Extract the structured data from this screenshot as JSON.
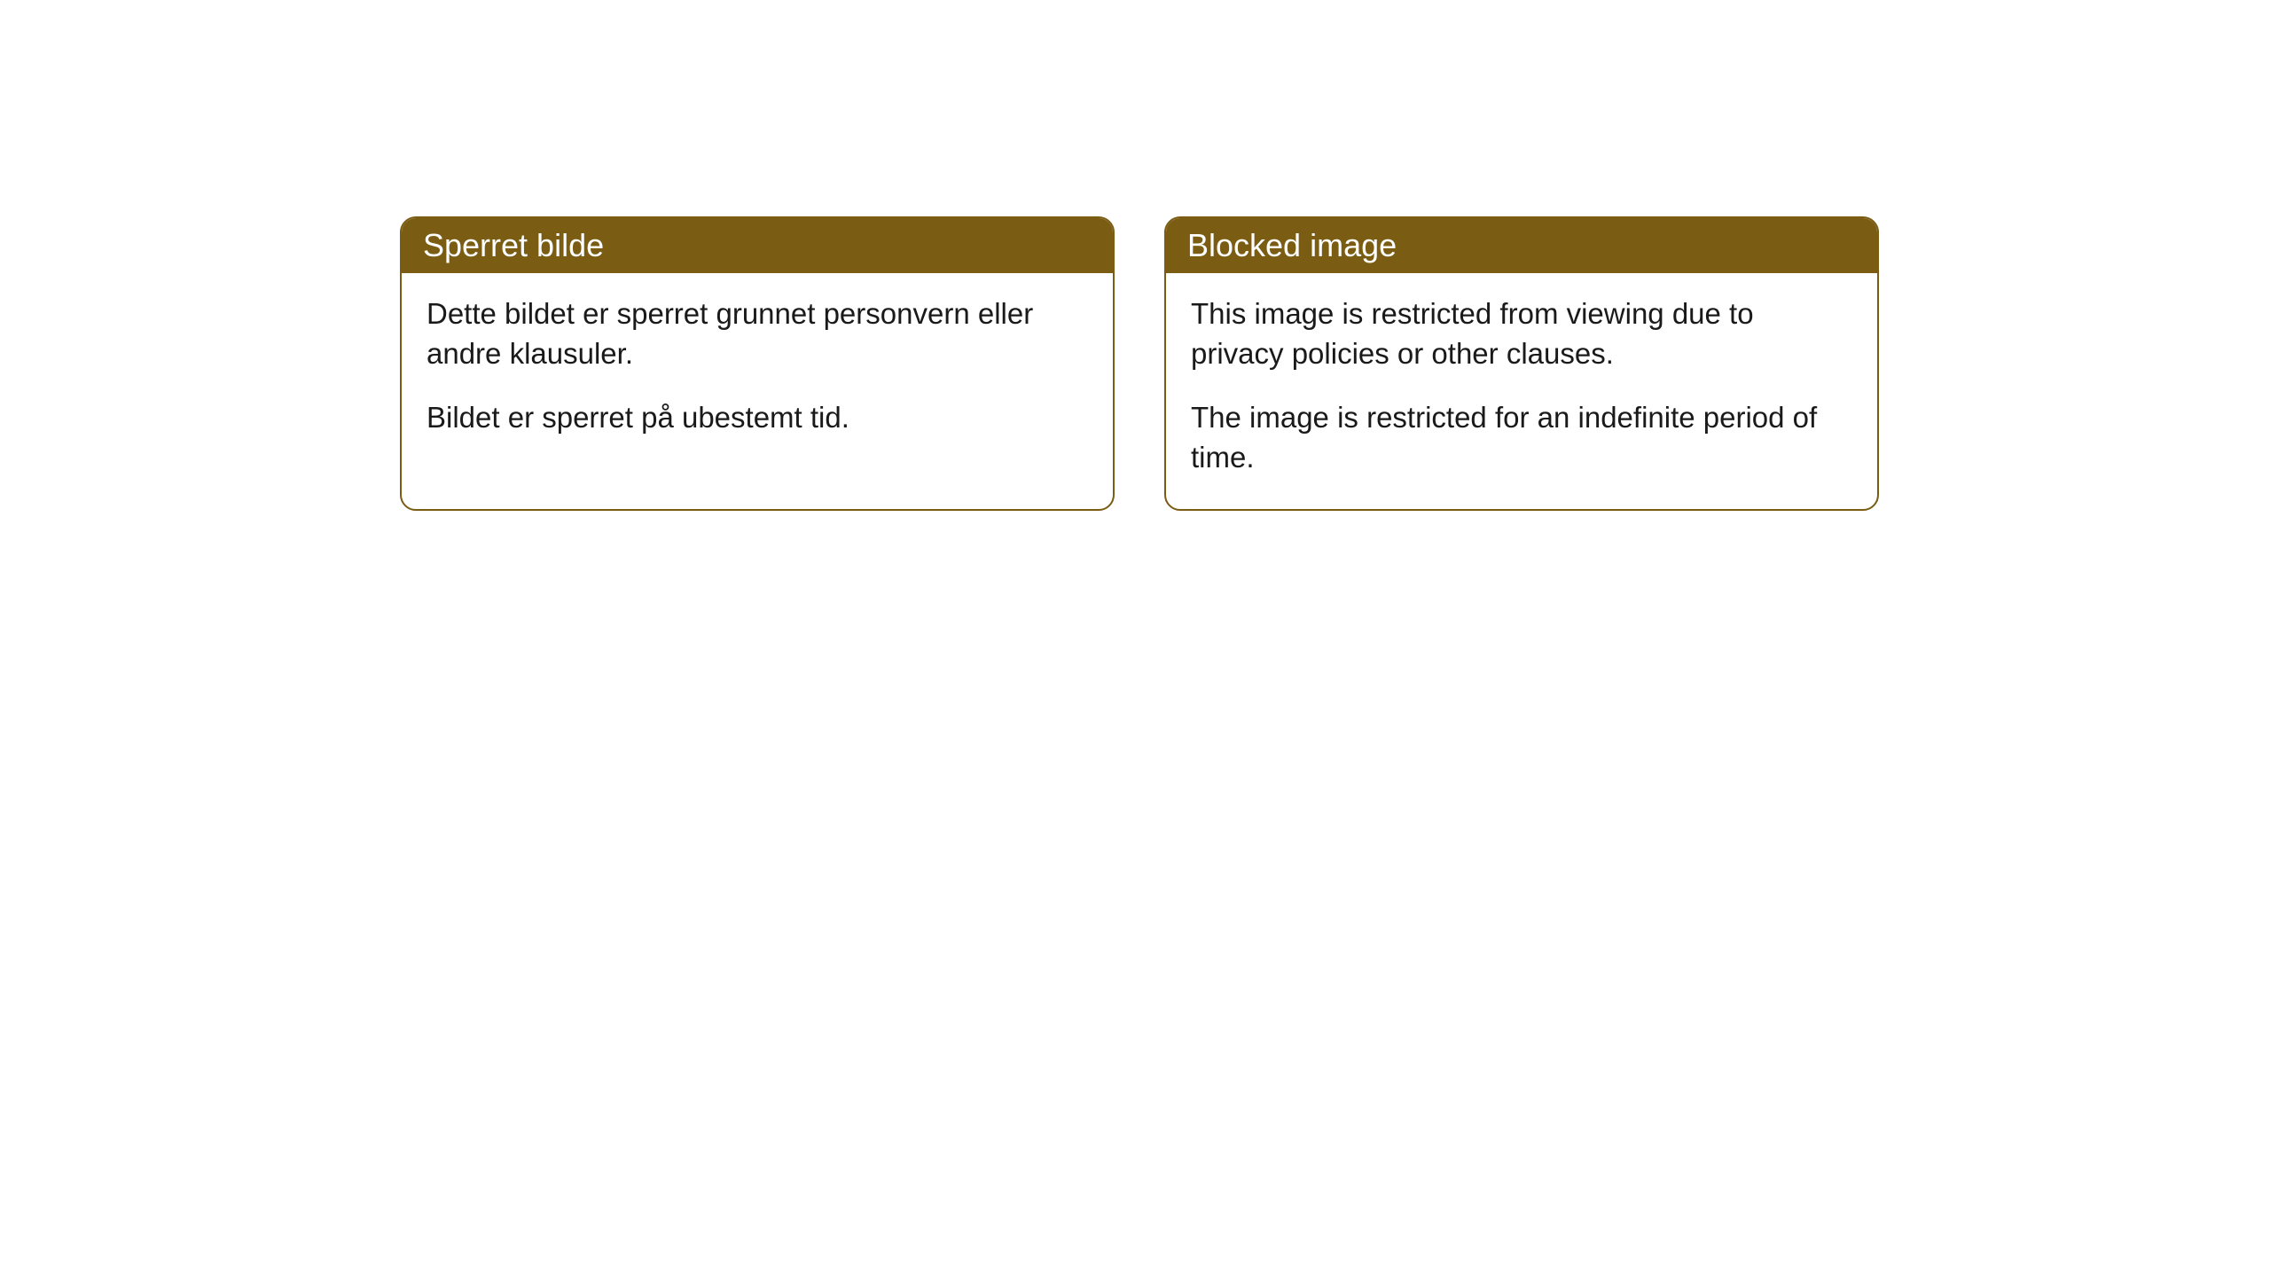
{
  "cards": [
    {
      "title": "Sperret bilde",
      "paragraph1": "Dette bildet er sperret grunnet personvern eller andre klausuler.",
      "paragraph2": "Bildet er sperret på ubestemt tid."
    },
    {
      "title": "Blocked image",
      "paragraph1": "This image is restricted from viewing due to privacy policies or other clauses.",
      "paragraph2": "The image is restricted for an indefinite period of time."
    }
  ],
  "colors": {
    "header_bg": "#7a5c13",
    "header_text": "#ffffff",
    "border": "#7a5c13",
    "body_text": "#1a1a1a",
    "page_bg": "#ffffff"
  }
}
